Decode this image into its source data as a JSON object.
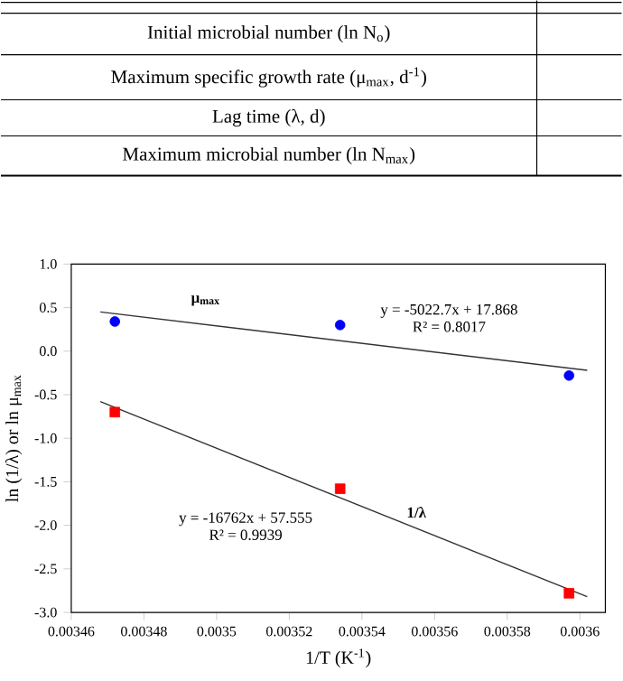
{
  "chart_data": {
    "type": "scatter",
    "xlabel": "1/T (K$^{-1}$)",
    "ylabel": "ln (1/λ) or ln μ$_{max}$",
    "xlim": [
      0.00346,
      0.003607
    ],
    "ylim": [
      -3.0,
      1.0
    ],
    "xticks": [
      0.00346,
      0.00348,
      0.0035,
      0.00352,
      0.00354,
      0.00356,
      0.00358,
      0.0036
    ],
    "yticks": [
      {
        "value": -3.0,
        "label": "-3.0"
      },
      {
        "value": -2.5,
        "label": "-2.5"
      },
      {
        "value": -2.0,
        "label": "-2.0"
      },
      {
        "value": -1.5,
        "label": "-1.5"
      },
      {
        "value": -1.0,
        "label": "-1.0"
      },
      {
        "value": -0.5,
        "label": "-0.5"
      },
      {
        "value": 0.0,
        "label": "0.0"
      },
      {
        "value": 0.5,
        "label": "0.5"
      },
      {
        "value": 1.0,
        "label": "1.0"
      }
    ],
    "grid": false,
    "series": [
      {
        "color": "#0000ff",
        "marker": "circle",
        "x": [
          0.003472,
          0.003534,
          0.003597
        ],
        "values": [
          0.34,
          0.3,
          -0.28
        ]
      },
      {
        "color": "#ff0000",
        "marker": "square",
        "x": [
          0.003472,
          0.003534,
          0.003597
        ],
        "values": [
          -0.7,
          -1.58,
          -2.78
        ]
      },
      {
        "type": "line",
        "color": "#333333",
        "marker": "none",
        "line_style": "solid",
        "x": [
          0.003468,
          0.003602
        ],
        "values": [
          0.45,
          -0.22
        ]
      },
      {
        "type": "line",
        "color": "#333333",
        "marker": "none",
        "line_style": "solid",
        "x": [
          0.003468,
          0.003602
        ],
        "values": [
          -0.58,
          -2.82
        ]
      }
    ],
    "annotations": [
      "Initial microbial number (ln N$_{o}$)",
      "Maximum specific growth rate (μ$_{max}$, d$^{-1}$)",
      "Lag time (λ, d)",
      "Maximum microbial number (ln N$_{max}$)",
      "μ$_{max}$",
      "y = -5022.7x + 17.868",
      "R² = 0.8017",
      "1/λ",
      "y = -16762x + 57.555",
      "R² = 0.9939"
    ]
  }
}
